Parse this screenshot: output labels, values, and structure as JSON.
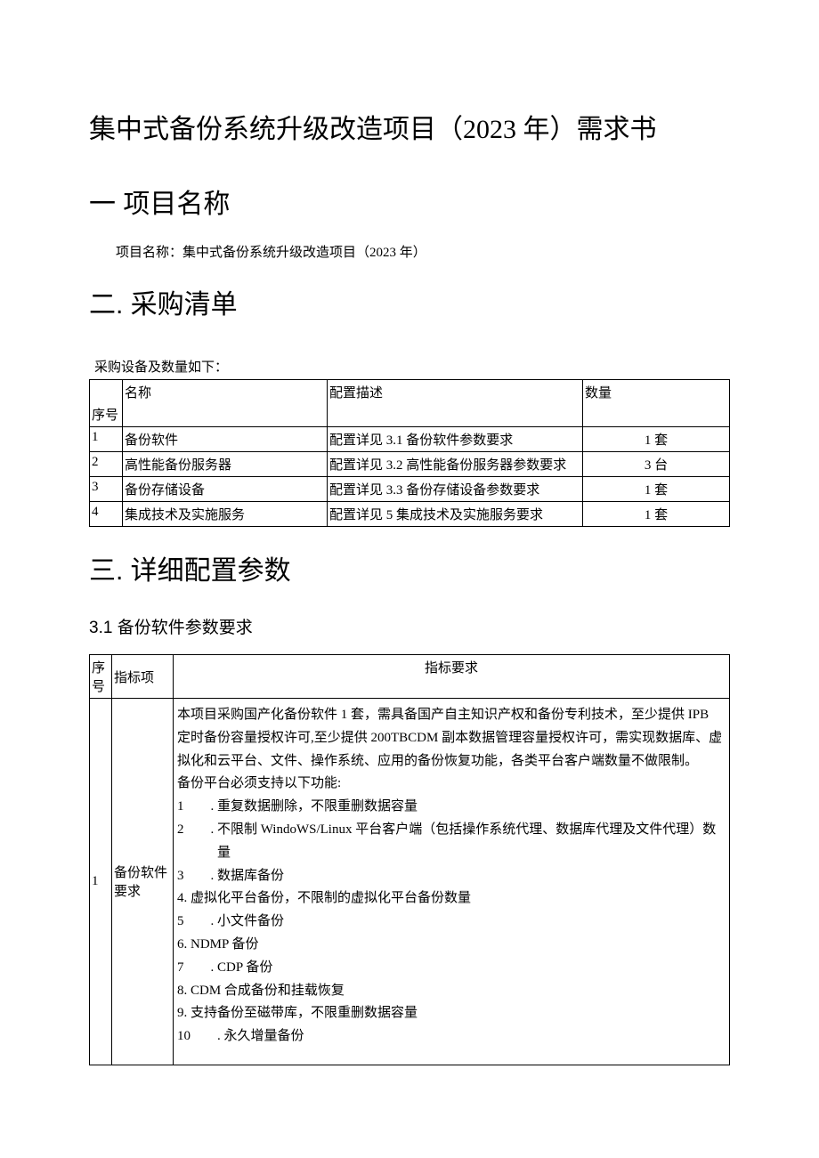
{
  "doc_title": "集中式备份系统升级改造项目（2023 年）需求书",
  "s1": {
    "heading": "一 项目名称",
    "body": "项目名称：集中式备份系统升级改造项目（2023 年）"
  },
  "s2": {
    "heading": "二. 采购清单",
    "caption": "采购设备及数量如下：",
    "table": {
      "columns": [
        "序号",
        "名称",
        "配置描述",
        "数量"
      ],
      "rows": [
        [
          "1",
          "备份软件",
          "配置详见 3.1 备份软件参数要求",
          "1 套"
        ],
        [
          "2",
          "高性能备份服务器",
          "配置详见 3.2 高性能备份服务器参数要求",
          "3 台"
        ],
        [
          "3",
          "备份存储设备",
          "配置详见 3.3 备份存储设备参数要求",
          "1 套"
        ],
        [
          "4",
          "集成技术及实施服务",
          "配置详见 5 集成技术及实施服务要求",
          "1 套"
        ]
      ],
      "col_align": [
        "left",
        "left",
        "left",
        "center"
      ]
    }
  },
  "s3": {
    "heading": "三. 详细配置参数",
    "sub": {
      "heading": "3.1  备份软件参数要求",
      "table": {
        "columns": [
          "序号",
          "指标项",
          "指标要求"
        ],
        "row": {
          "seq": "1",
          "item": "备份软件要求",
          "req_lines": [
            "本项目采购国产化备份软件 1 套，需具备国产自主知识产权和备份专利技术，至少提供 IPB",
            "定时备份容量授权许可,至少提供 200TBCDM 副本数据管理容量授权许可，需实现数据库、虚",
            "拟化和云平台、文件、操作系统、应用的备份恢复功能，各类平台客户端数量不做限制。",
            "备份平台必须支持以下功能:",
            "1  . 重复数据删除，不限重删数据容量",
            "2  . 不限制 WindoWS/Linux 平台客户端（包括操作系统代理、数据库代理及文件代理）数",
            "   量",
            "3  . 数据库备份",
            "4. 虚拟化平台备份，不限制的虚拟化平台备份数量",
            "5  . 小文件备份",
            "6. NDMP 备份",
            "7  . CDP 备份",
            "8. CDM 合成备份和挂载恢复",
            "9. 支持备份至磁带库，不限重删数据容量",
            "10  . 永久增量备份"
          ]
        }
      }
    }
  }
}
